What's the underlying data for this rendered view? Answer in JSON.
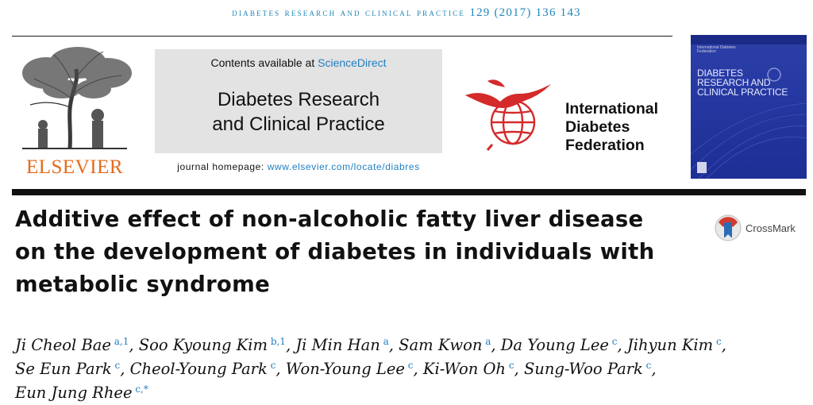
{
  "header": {
    "journal_citation": "diabetes research and clinical practice",
    "volume_pages": "129 (2017) 136 143"
  },
  "publisher": {
    "logo_text": "ELSEVIER"
  },
  "journal_box": {
    "contents_prefix": "Contents available at ",
    "contents_link": "ScienceDirect",
    "title_line1": "Diabetes Research",
    "title_line2": "and Clinical Practice",
    "homepage_prefix": "journal homepage: ",
    "homepage_url": "www.elsevier.com/locate/diabres"
  },
  "idf": {
    "line1": "International",
    "line2": "Diabetes",
    "line3": "Federation"
  },
  "cover": {
    "publisher_small": "International Diabetes Federation",
    "title_line1": "DIABETES",
    "title_line2": "RESEARCH AND",
    "title_line3": "CLINICAL PRACTICE"
  },
  "article": {
    "title_line1": "Additive effect of non-alcoholic fatty liver disease",
    "title_line2": "on the development of diabetes in individuals with",
    "title_line3": "metabolic syndrome"
  },
  "crossmark": {
    "label": "CrossMark"
  },
  "authors": [
    {
      "name": "Ji Cheol Bae",
      "aff": "a,1",
      "sep": ", "
    },
    {
      "name": "Soo Kyoung Kim",
      "aff": "b,1",
      "sep": ", "
    },
    {
      "name": "Ji Min Han",
      "aff": "a",
      "sep": ", "
    },
    {
      "name": "Sam Kwon",
      "aff": "a",
      "sep": ", "
    },
    {
      "name": "Da Young Lee",
      "aff": "c",
      "sep": ", "
    },
    {
      "name": "Jihyun Kim",
      "aff": "c",
      "sep": ","
    },
    {
      "name": "Se Eun Park",
      "aff": "c",
      "sep": ", "
    },
    {
      "name": "Cheol-Young Park",
      "aff": "c",
      "sep": ", "
    },
    {
      "name": "Won-Young Lee",
      "aff": "c",
      "sep": ", "
    },
    {
      "name": "Ki-Won Oh",
      "aff": "c",
      "sep": ", "
    },
    {
      "name": "Sung-Woo Park",
      "aff": "c",
      "sep": ","
    },
    {
      "name": "Eun Jung Rhee",
      "aff": "c,*",
      "sep": ""
    }
  ],
  "colors": {
    "link_blue": "#1f7fc0",
    "elsevier_orange": "#e56a1b",
    "idf_red": "#d42a2a",
    "cover_blue": "#2437a0"
  }
}
